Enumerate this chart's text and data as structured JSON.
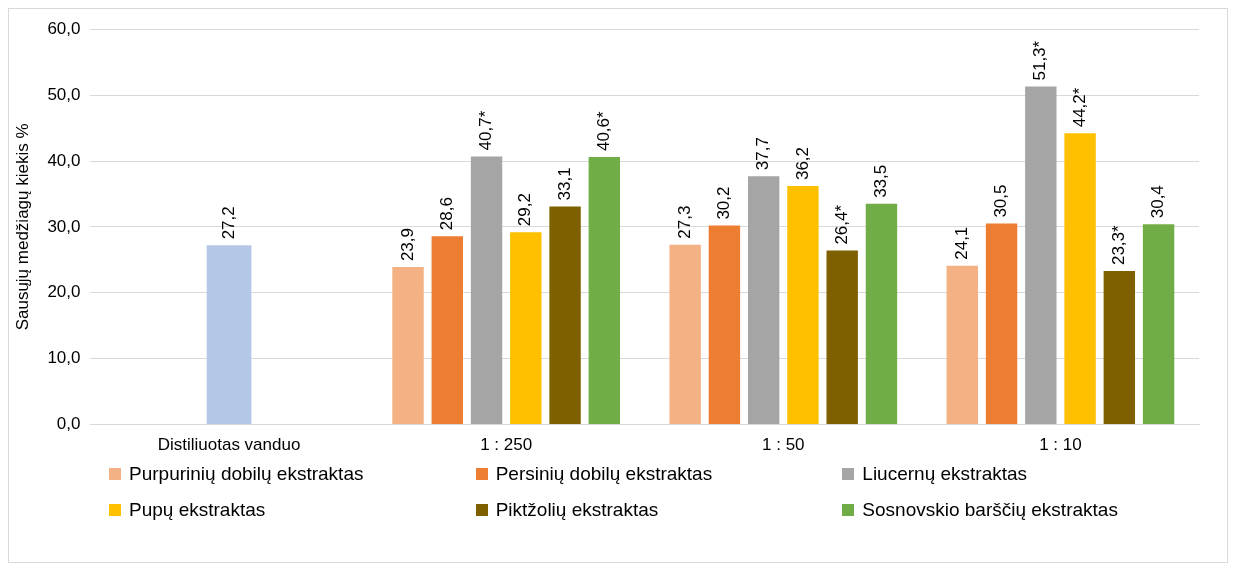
{
  "chart_data": {
    "type": "bar",
    "ylabel": "Sausųjų medžiagų kiekis %",
    "categories": [
      "Distiliuotas vanduo",
      "1 : 250",
      "1 : 50",
      "1 : 10"
    ],
    "ylim": [
      0,
      60
    ],
    "yticks": [
      {
        "value": 0,
        "label": "0,0"
      },
      {
        "value": 10,
        "label": "10,0"
      },
      {
        "value": 20,
        "label": "20,0"
      },
      {
        "value": 30,
        "label": "30,0"
      },
      {
        "value": 40,
        "label": "40,0"
      },
      {
        "value": 50,
        "label": "50,0"
      },
      {
        "value": 60,
        "label": "60,0"
      }
    ],
    "grid": "y",
    "legend": "bottom",
    "series": [
      {
        "color": "#b4c7e7",
        "values": [
          27.2,
          null,
          null,
          null
        ],
        "value_labels": [
          "27,2",
          null,
          null,
          null
        ]
      },
      {
        "name": "Purpurinių dobilų ekstraktas",
        "color": "#f4b183",
        "values": [
          null,
          23.9,
          27.3,
          24.1
        ],
        "value_labels": [
          null,
          "23,9",
          "27,3",
          "24,1"
        ]
      },
      {
        "name": "Persinių dobilų ekstraktas",
        "color": "#ed7d31",
        "values": [
          null,
          28.6,
          30.2,
          30.5
        ],
        "value_labels": [
          null,
          "28,6",
          "30,2",
          "30,5"
        ]
      },
      {
        "name": "Liucernų ekstraktas",
        "color": "#a5a5a5",
        "values": [
          null,
          40.7,
          37.7,
          51.3
        ],
        "value_labels": [
          null,
          "40,7*",
          "37,7",
          "51,3*"
        ]
      },
      {
        "name": "Pupų ekstraktas",
        "color": "#ffc000",
        "values": [
          null,
          29.2,
          36.2,
          44.2
        ],
        "value_labels": [
          null,
          "29,2",
          "36,2",
          "44,2*"
        ]
      },
      {
        "name": "Piktžolių ekstraktas",
        "color": "#7f6000",
        "values": [
          null,
          33.1,
          26.4,
          23.3
        ],
        "value_labels": [
          null,
          "33,1",
          "26,4*",
          "23,3*"
        ]
      },
      {
        "name": "Sosnovskio barščių ekstraktas",
        "color": "#70ad47",
        "values": [
          null,
          40.6,
          33.5,
          30.4
        ],
        "value_labels": [
          null,
          "40,6*",
          "33,5",
          "30,4"
        ]
      }
    ]
  }
}
